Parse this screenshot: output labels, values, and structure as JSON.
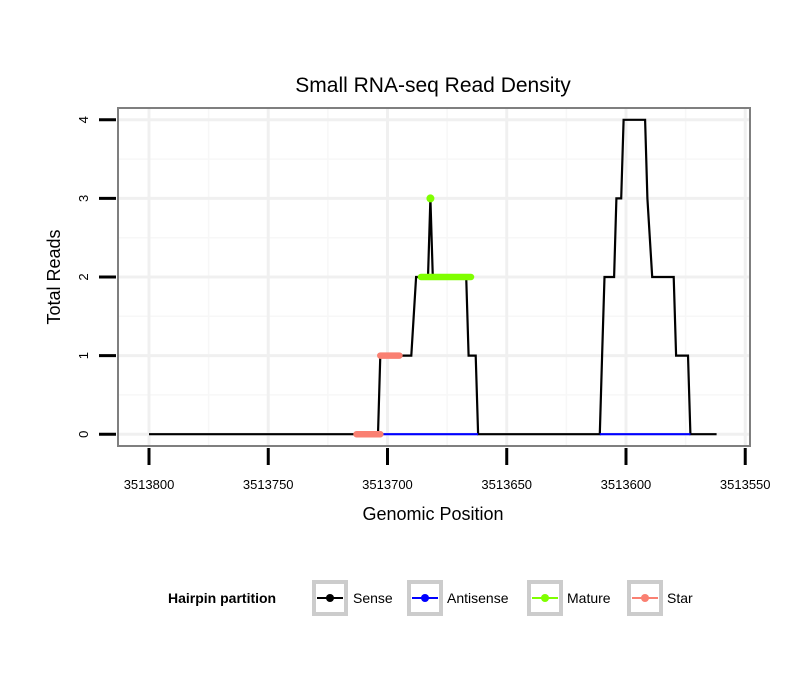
{
  "chart_data": {
    "type": "line",
    "title": "Small RNA-seq Read Density",
    "xlabel": "Genomic Position",
    "ylabel": "Total Reads",
    "x_reversed": true,
    "xlim": [
      3513813,
      3513548
    ],
    "ylim": [
      -0.15,
      4.15
    ],
    "x_ticks": [
      3513800,
      3513750,
      3513700,
      3513650,
      3513600,
      3513550
    ],
    "x_tick_labels": [
      "3513800",
      "3513750",
      "3513700",
      "3513650",
      "3513600",
      "3513550"
    ],
    "y_ticks": [
      0,
      1,
      2,
      3,
      4
    ],
    "y_tick_labels": [
      "0",
      "1",
      "2",
      "3",
      "4"
    ],
    "grid": true,
    "legend": {
      "title": "Hairpin partition",
      "position": "bottom",
      "entries": [
        {
          "name": "Sense",
          "color": "#000000"
        },
        {
          "name": "Antisense",
          "color": "#0000ff"
        },
        {
          "name": "Mature",
          "color": "#7fff00"
        },
        {
          "name": "Star",
          "color": "#fa8072"
        }
      ]
    },
    "series": [
      {
        "name": "Sense",
        "color": "#000000",
        "style": "line",
        "points": [
          [
            3513800,
            0
          ],
          [
            3513704,
            0
          ],
          [
            3513703,
            1
          ],
          [
            3513690,
            1
          ],
          [
            3513688,
            2
          ],
          [
            3513683,
            2
          ],
          [
            3513682,
            3
          ],
          [
            3513681,
            2
          ],
          [
            3513667,
            2
          ],
          [
            3513666,
            1
          ],
          [
            3513663,
            1
          ],
          [
            3513662,
            0
          ],
          [
            3513611,
            0
          ],
          [
            3513610,
            1
          ],
          [
            3513609,
            2
          ],
          [
            3513605,
            2
          ],
          [
            3513604,
            3
          ],
          [
            3513602,
            3
          ],
          [
            3513601,
            4
          ],
          [
            3513592,
            4
          ],
          [
            3513591,
            3
          ],
          [
            3513589,
            2
          ],
          [
            3513580,
            2
          ],
          [
            3513579,
            1
          ],
          [
            3513574,
            1
          ],
          [
            3513573,
            0
          ],
          [
            3513562,
            0
          ]
        ]
      },
      {
        "name": "Antisense",
        "color": "#0000ff",
        "style": "line",
        "segments": [
          [
            [
              3513704,
              0
            ],
            [
              3513662,
              0
            ]
          ],
          [
            [
              3513611,
              0
            ],
            [
              3513573,
              0
            ]
          ]
        ]
      },
      {
        "name": "Mature",
        "color": "#7fff00",
        "style": "thick",
        "points": [
          [
            3513686,
            2
          ],
          [
            3513665,
            2
          ]
        ],
        "dots": [
          [
            3513682,
            3
          ]
        ]
      },
      {
        "name": "Star",
        "color": "#fa8072",
        "style": "thick",
        "segments": [
          [
            [
              3513713,
              0
            ],
            [
              3513703,
              0
            ]
          ],
          [
            [
              3513703,
              1
            ],
            [
              3513695,
              1
            ]
          ]
        ]
      }
    ]
  }
}
